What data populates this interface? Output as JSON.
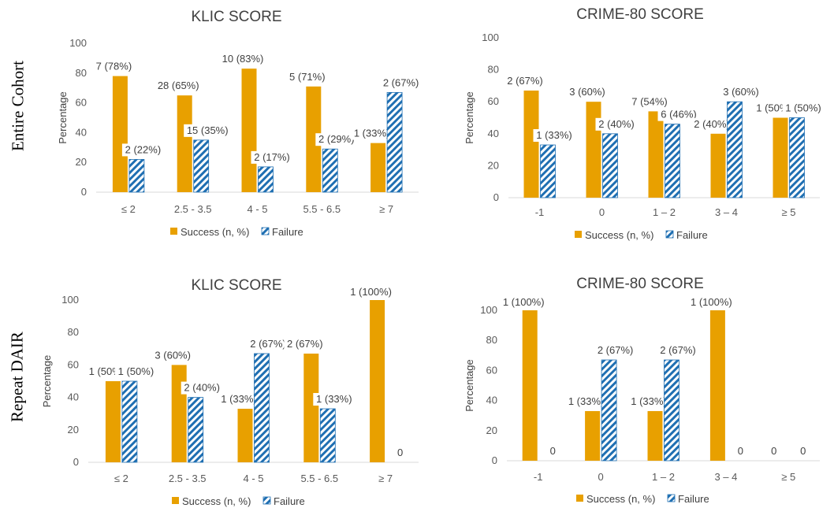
{
  "row_labels": {
    "top": "Entire Cohort",
    "bottom": "Repeat DAIR"
  },
  "colors": {
    "success": "#E8A000",
    "failure": "#1F6FB2",
    "axis": "#D9D9D9",
    "text": "#404040"
  },
  "chart_data": [
    {
      "type": "bar",
      "title": "KLIC SCORE",
      "ylabel": "Percentage",
      "xlabel": "",
      "ylim": [
        0,
        100
      ],
      "yticks": [
        0,
        20,
        40,
        60,
        80,
        100
      ],
      "categories": [
        "≤ 2",
        "2.5 - 3.5",
        "4 - 5",
        "5.5 - 6.5",
        "≥ 7"
      ],
      "series": [
        {
          "name": "Success (n, %)",
          "values": [
            78,
            65,
            83,
            71,
            33
          ],
          "labels": [
            "7 (78%)",
            "28 (65%)",
            "10 (83%)",
            "5 (71%)",
            "1 (33%)"
          ]
        },
        {
          "name": "Failure",
          "values": [
            22,
            35,
            17,
            29,
            67
          ],
          "labels": [
            "2 (22%)",
            "15 (35%)",
            "2 (17%)",
            "2 (29%)",
            "2 (67%)"
          ]
        }
      ],
      "legend": [
        "Success (n, %)",
        "Failure"
      ]
    },
    {
      "type": "bar",
      "title": "CRIME-80 SCORE",
      "ylabel": "Percentage",
      "xlabel": "",
      "ylim": [
        0,
        100
      ],
      "yticks": [
        0,
        20,
        40,
        60,
        80,
        100
      ],
      "categories": [
        "-1",
        "0",
        "1 – 2",
        "3 – 4",
        "≥ 5"
      ],
      "series": [
        {
          "name": "Success (n, %)",
          "values": [
            67,
            60,
            54,
            40,
            50
          ],
          "labels": [
            "2 (67%)",
            "3 (60%)",
            "7 (54%)",
            "2 (40%)",
            "1 (50%)"
          ]
        },
        {
          "name": "Failure",
          "values": [
            33,
            40,
            46,
            60,
            50
          ],
          "labels": [
            "1 (33%)",
            "2 (40%)",
            "6 (46%)",
            "3 (60%)",
            "1 (50%)"
          ]
        }
      ],
      "legend": [
        "Success (n, %)",
        "Failure"
      ]
    },
    {
      "type": "bar",
      "title": "KLIC SCORE",
      "ylabel": "Percentage",
      "xlabel": "",
      "ylim": [
        0,
        100
      ],
      "yticks": [
        0,
        20,
        40,
        60,
        80,
        100
      ],
      "categories": [
        "≤ 2",
        "2.5 - 3.5",
        "4 - 5",
        "5.5 - 6.5",
        "≥ 7"
      ],
      "series": [
        {
          "name": "Success (n, %)",
          "values": [
            50,
            60,
            33,
            67,
            100
          ],
          "labels": [
            "1 (50%)",
            "3 (60%)",
            "1 (33%)",
            "2 (67%)",
            "1 (100%)"
          ]
        },
        {
          "name": "Failure",
          "values": [
            50,
            40,
            67,
            33,
            0
          ],
          "labels": [
            "1 (50%)",
            "2 (40%)",
            "2 (67%)",
            "1 (33%)",
            "0"
          ]
        }
      ],
      "legend": [
        "Success (n, %)",
        "Failure"
      ]
    },
    {
      "type": "bar",
      "title": "CRIME-80 SCORE",
      "ylabel": "Percentage",
      "xlabel": "",
      "ylim": [
        0,
        100
      ],
      "yticks": [
        0,
        20,
        40,
        60,
        80,
        100
      ],
      "categories": [
        "-1",
        "0",
        "1 – 2",
        "3 – 4",
        "≥ 5"
      ],
      "series": [
        {
          "name": "Success (n, %)",
          "values": [
            100,
            33,
            33,
            100,
            0
          ],
          "labels": [
            "1 (100%)",
            "1 (33%)",
            "1 (33%)",
            "1 (100%)",
            "0"
          ]
        },
        {
          "name": "Failure",
          "values": [
            0,
            67,
            67,
            0,
            0
          ],
          "labels": [
            "0",
            "2 (67%)",
            "2 (67%)",
            "0",
            "0"
          ]
        }
      ],
      "legend": [
        "Success (n, %)",
        "Failure"
      ]
    }
  ]
}
